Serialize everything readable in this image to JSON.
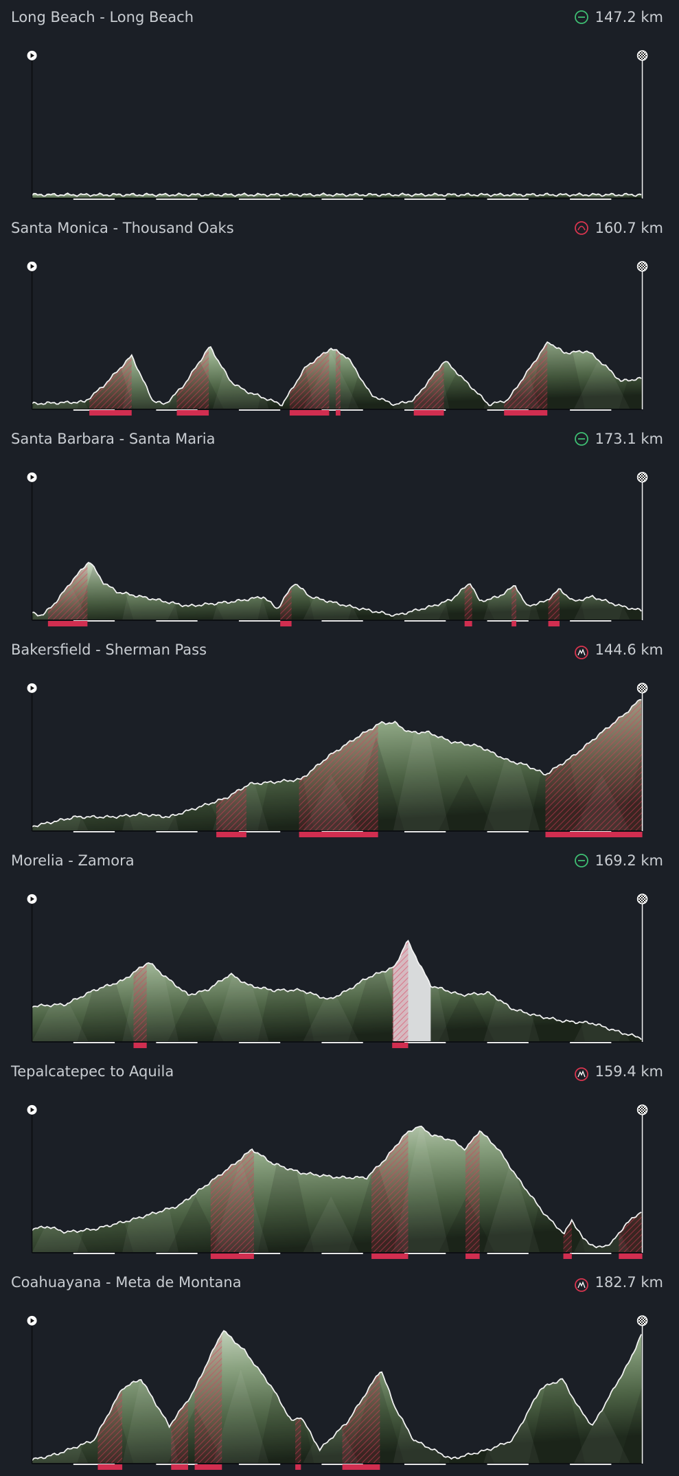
{
  "stages": [
    {
      "title": "Long Beach - Long Beach",
      "distance": "147.2 km"
    },
    {
      "title": "Santa Monica - Thousand Oaks",
      "distance": "160.7 km"
    },
    {
      "title": "Santa Barbara - Santa Maria",
      "distance": "173.1 km"
    },
    {
      "title": "Bakersfield - Sherman Pass",
      "distance": "144.6 km"
    },
    {
      "title": "Morelia - Zamora",
      "distance": "169.2 km"
    },
    {
      "title": "Tepalcatepec to Aquila",
      "distance": "159.4 km"
    },
    {
      "title": "Coahuayana - Meta de Montana",
      "distance": "182.7 km"
    }
  ]
}
